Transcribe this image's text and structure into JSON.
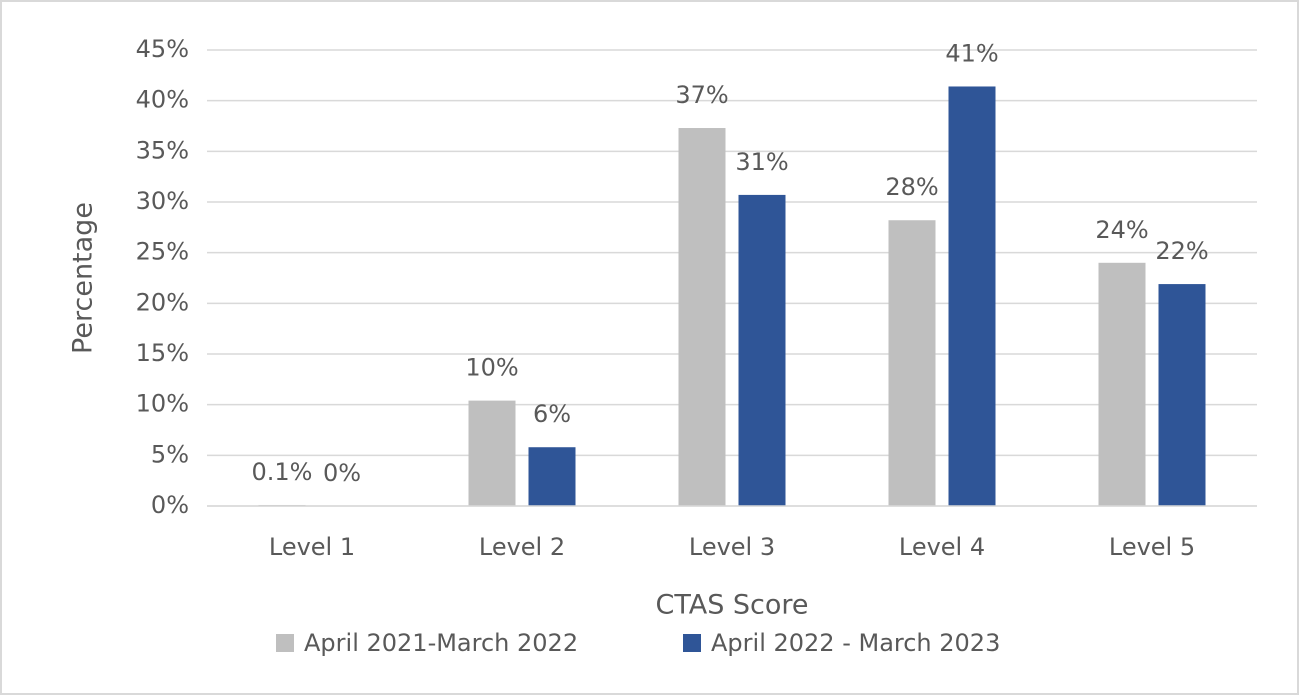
{
  "chart_data": {
    "type": "bar",
    "x_label": "CTAS Score",
    "y_label": "Percentage",
    "categories": [
      "Level 1",
      "Level 2",
      "Level 3",
      "Level 4",
      "Level 5"
    ],
    "series": [
      {
        "name": "April 2021-March 2022",
        "color": "#bfbfbf",
        "values": [
          0.1,
          10.4,
          37.3,
          28.2,
          24.0
        ],
        "value_labels": [
          "0.1%",
          "10%",
          "37%",
          "28%",
          "24%"
        ]
      },
      {
        "name": "April 2022 - March 2023",
        "color": "#2f5597",
        "values": [
          0,
          5.8,
          30.7,
          41.4,
          21.9
        ],
        "value_labels": [
          "0%",
          "6%",
          "31%",
          "41%",
          "22%"
        ]
      }
    ],
    "ylim": [
      0,
      45
    ],
    "yticks": [
      {
        "value": 0,
        "label": "0%"
      },
      {
        "value": 5,
        "label": "5%"
      },
      {
        "value": 10,
        "label": "10%"
      },
      {
        "value": 15,
        "label": "15%"
      },
      {
        "value": 20,
        "label": "20%"
      },
      {
        "value": 25,
        "label": "25%"
      },
      {
        "value": 30,
        "label": "30%"
      },
      {
        "value": 35,
        "label": "35%"
      },
      {
        "value": 40,
        "label": "40%"
      },
      {
        "value": 45,
        "label": "45%"
      }
    ],
    "grid": true,
    "legend": "bottom"
  }
}
